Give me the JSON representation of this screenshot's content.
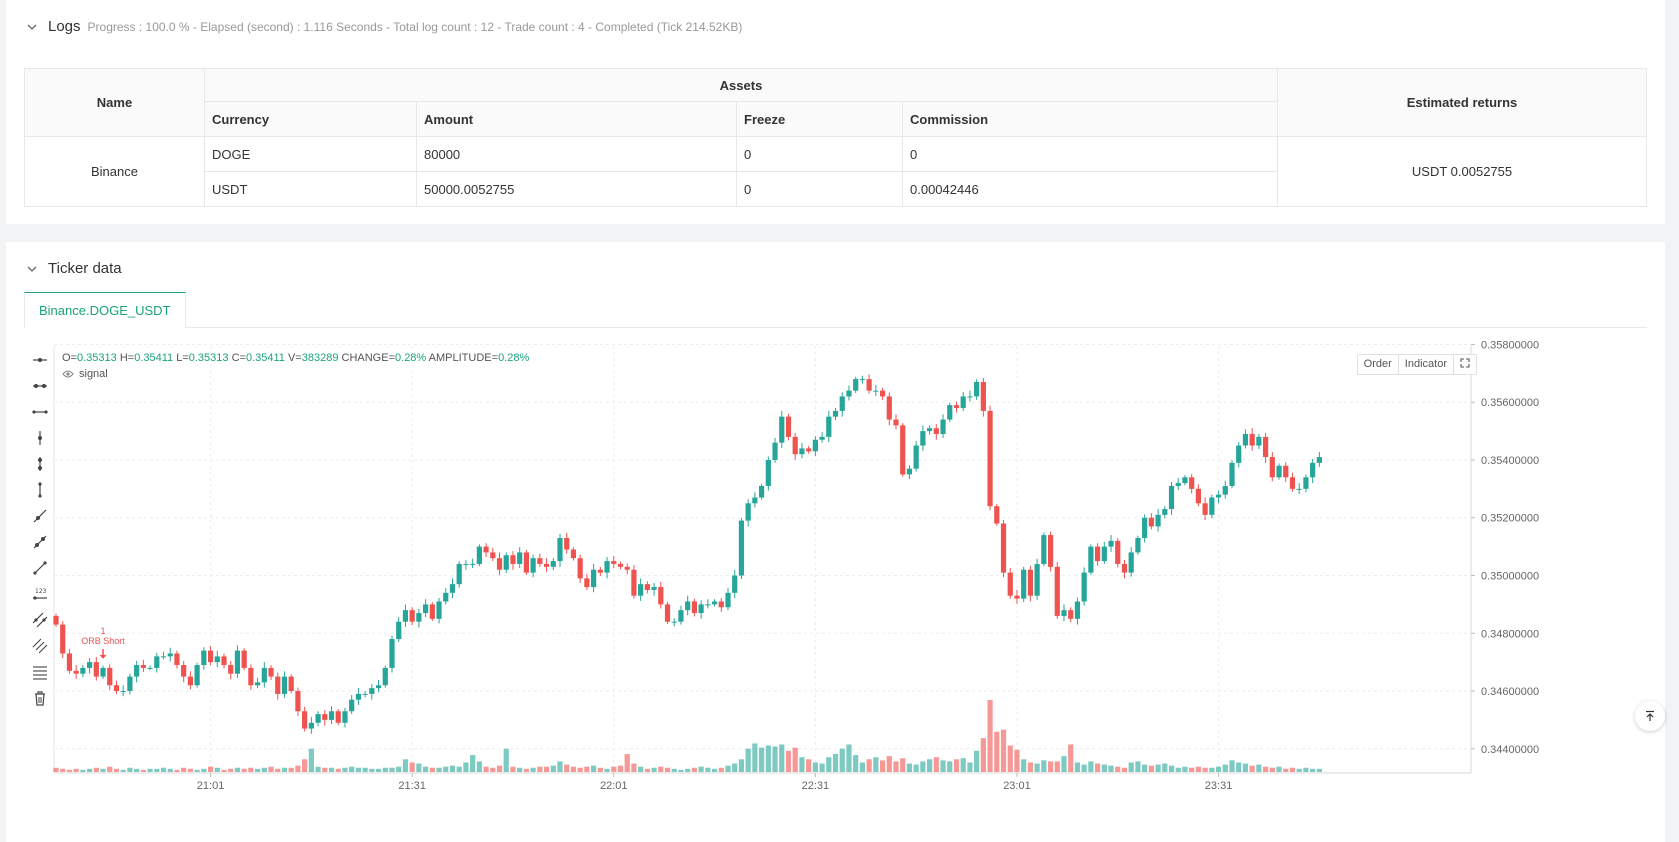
{
  "logs": {
    "title": "Logs",
    "summary": "Progress : 100.0 % - Elapsed (second) : 1.116  Seconds - Total log count : 12 - Trade count : 4 - Completed (Tick 214.52KB)",
    "table": {
      "headers": {
        "name": "Name",
        "assets": "Assets",
        "returns": "Estimated returns"
      },
      "subheaders": [
        "Currency",
        "Amount",
        "Freeze",
        "Commission"
      ],
      "exchange": "Binance",
      "rows": [
        {
          "currency": "DOGE",
          "amount": "80000",
          "freeze": "0",
          "commission": "0"
        },
        {
          "currency": "USDT",
          "amount": "50000.0052755",
          "freeze": "0",
          "commission": "0.00042446"
        }
      ],
      "estimated_returns": "USDT 0.0052755"
    }
  },
  "ticker": {
    "title": "Ticker data",
    "tab_label": "Binance.DOGE_USDT",
    "ohlc": {
      "o_label": "O=",
      "o": "0.35313",
      "h_label": "H=",
      "h": "0.35411",
      "l_label": "L=",
      "l": "0.35313",
      "c_label": "C=",
      "c": "0.35411",
      "v_label": "V=",
      "v": "383289",
      "change_label": "CHANGE=",
      "change": "0.28%",
      "amplitude_label": "AMPLITUDE=",
      "amplitude": "0.28%"
    },
    "signal_label": "signal",
    "buttons": {
      "order": "Order",
      "indicator": "Indicator"
    },
    "marker": {
      "count": "1",
      "text": "ORB Short"
    },
    "colors": {
      "up": "#26a69a",
      "down": "#ef5350",
      "accent": "#1aa37a"
    }
  },
  "chart_data": {
    "type": "candlestick",
    "symbol": "Binance.DOGE_USDT",
    "y_ticks": [
      "0.35800000",
      "0.35600000",
      "0.35400000",
      "0.35200000",
      "0.35000000",
      "0.34800000",
      "0.34600000",
      "0.34400000"
    ],
    "y_range": [
      0.3433,
      0.3576
    ],
    "x_ticks": [
      "21:01",
      "21:31",
      "22:01",
      "22:31",
      "23:01",
      "23:31"
    ],
    "x_tick_index": [
      23,
      53,
      83,
      113,
      143,
      173
    ],
    "closes": [
      0.3483,
      0.3473,
      0.3467,
      0.3466,
      0.3468,
      0.347,
      0.3465,
      0.3468,
      0.3462,
      0.346,
      0.346,
      0.3465,
      0.3469,
      0.3468,
      0.3468,
      0.3472,
      0.3472,
      0.3473,
      0.3469,
      0.3465,
      0.3462,
      0.3469,
      0.3474,
      0.347,
      0.3472,
      0.3469,
      0.3466,
      0.3474,
      0.3468,
      0.3462,
      0.3463,
      0.3468,
      0.3465,
      0.3459,
      0.3465,
      0.346,
      0.3453,
      0.3447,
      0.3449,
      0.3452,
      0.345,
      0.3453,
      0.3449,
      0.3453,
      0.3457,
      0.3459,
      0.3459,
      0.3461,
      0.3462,
      0.3468,
      0.3478,
      0.3484,
      0.3488,
      0.3484,
      0.3487,
      0.349,
      0.3485,
      0.3491,
      0.3494,
      0.3497,
      0.3504,
      0.3504,
      0.3504,
      0.351,
      0.3508,
      0.3506,
      0.3502,
      0.3507,
      0.3504,
      0.3508,
      0.3501,
      0.3506,
      0.3504,
      0.3503,
      0.3505,
      0.3513,
      0.3509,
      0.3506,
      0.3499,
      0.3496,
      0.3502,
      0.3501,
      0.3505,
      0.3504,
      0.3503,
      0.3502,
      0.3493,
      0.3497,
      0.3495,
      0.3496,
      0.349,
      0.3484,
      0.3484,
      0.3488,
      0.3491,
      0.3487,
      0.349,
      0.349,
      0.3491,
      0.3489,
      0.3494,
      0.35,
      0.3519,
      0.3525,
      0.3527,
      0.3531,
      0.354,
      0.3546,
      0.3555,
      0.3548,
      0.3542,
      0.3544,
      0.3543,
      0.3547,
      0.3548,
      0.3555,
      0.3557,
      0.3562,
      0.3564,
      0.3568,
      0.3568,
      0.3564,
      0.3564,
      0.3562,
      0.3554,
      0.3552,
      0.3535,
      0.3537,
      0.3545,
      0.355,
      0.3551,
      0.3549,
      0.3554,
      0.3559,
      0.3558,
      0.3562,
      0.3562,
      0.3567,
      0.3557,
      0.3524,
      0.3518,
      0.3501,
      0.3493,
      0.3492,
      0.3502,
      0.3493,
      0.3504,
      0.3514,
      0.3503,
      0.3486,
      0.3488,
      0.3485,
      0.3491,
      0.3501,
      0.351,
      0.3505,
      0.351,
      0.3512,
      0.3504,
      0.3501,
      0.3508,
      0.3513,
      0.352,
      0.3517,
      0.3521,
      0.3523,
      0.3531,
      0.3532,
      0.3534,
      0.353,
      0.3525,
      0.3521,
      0.3527,
      0.3528,
      0.3531,
      0.3539,
      0.3545,
      0.3549,
      0.3545,
      0.3548,
      0.3541,
      0.3534,
      0.3538,
      0.3534,
      0.353,
      0.353,
      0.3534,
      0.3539,
      0.3541
    ],
    "volumes": [
      4,
      3,
      2,
      3,
      2,
      3,
      4,
      3,
      5,
      3,
      2,
      4,
      3,
      2,
      3,
      3,
      4,
      3,
      2,
      4,
      3,
      2,
      3,
      5,
      4,
      2,
      3,
      4,
      3,
      4,
      3,
      4,
      5,
      3,
      4,
      4,
      6,
      12,
      22,
      5,
      4,
      4,
      3,
      4,
      5,
      4,
      4,
      3,
      3,
      4,
      4,
      5,
      12,
      9,
      8,
      5,
      4,
      4,
      5,
      6,
      5,
      9,
      16,
      10,
      5,
      4,
      6,
      22,
      5,
      4,
      3,
      4,
      5,
      5,
      6,
      10,
      7,
      5,
      4,
      5,
      6,
      4,
      3,
      5,
      6,
      17,
      8,
      5,
      3,
      4,
      5,
      4,
      3,
      2,
      3,
      4,
      5,
      4,
      3,
      4,
      6,
      8,
      12,
      22,
      27,
      23,
      25,
      24,
      26,
      20,
      23,
      14,
      12,
      9,
      8,
      14,
      17,
      22,
      26,
      16,
      9,
      12,
      14,
      11,
      15,
      10,
      13,
      8,
      7,
      10,
      12,
      14,
      11,
      10,
      12,
      13,
      9,
      20,
      32,
      68,
      38,
      40,
      25,
      21,
      12,
      9,
      8,
      11,
      10,
      10,
      15,
      26,
      9,
      7,
      10,
      8,
      7,
      6,
      5,
      4,
      9,
      10,
      7,
      6,
      7,
      8,
      6,
      4,
      5,
      4,
      5,
      4,
      4,
      5,
      7,
      11,
      9,
      8,
      6,
      7,
      5,
      4,
      5,
      3,
      4,
      3,
      4,
      3,
      3
    ]
  }
}
